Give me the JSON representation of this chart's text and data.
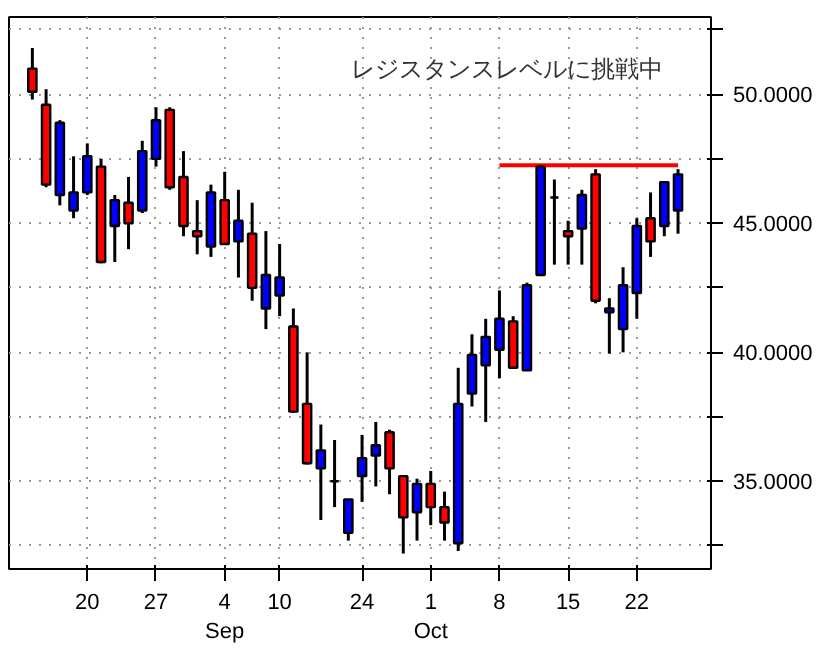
{
  "chart_data": {
    "type": "candlestick",
    "categories": [
      null,
      null,
      null,
      null,
      "20",
      null,
      null,
      null,
      null,
      "27",
      null,
      null,
      null,
      null,
      "4\nSep",
      null,
      null,
      null,
      "10",
      null,
      null,
      null,
      null,
      null,
      "24",
      null,
      null,
      null,
      null,
      "1\nOct",
      null,
      null,
      null,
      null,
      "8",
      null,
      null,
      null,
      null,
      "15",
      null,
      null,
      null,
      null,
      "22",
      null,
      null,
      null
    ],
    "ohlc": [
      [
        51.0,
        51.8,
        49.8,
        50.1
      ],
      [
        49.6,
        50.2,
        46.4,
        46.5
      ],
      [
        46.1,
        49.0,
        45.7,
        48.9
      ],
      [
        45.5,
        47.6,
        45.2,
        46.2
      ],
      [
        46.2,
        48.1,
        46.1,
        47.6
      ],
      [
        47.2,
        47.5,
        43.45,
        43.5
      ],
      [
        44.9,
        46.1,
        43.5,
        45.9
      ],
      [
        45.8,
        46.8,
        44.0,
        45.0
      ],
      [
        45.5,
        48.2,
        45.4,
        47.8
      ],
      [
        47.5,
        49.5,
        47.2,
        49.0
      ],
      [
        49.4,
        49.5,
        46.3,
        46.4
      ],
      [
        46.8,
        47.8,
        44.5,
        44.9
      ],
      [
        44.7,
        45.9,
        43.8,
        44.5
      ],
      [
        44.1,
        46.5,
        43.7,
        46.2
      ],
      [
        45.9,
        47.0,
        44.2,
        44.2
      ],
      [
        44.3,
        46.3,
        42.9,
        45.1
      ],
      [
        44.6,
        45.8,
        42.0,
        42.5
      ],
      [
        41.7,
        44.7,
        40.9,
        43.0
      ],
      [
        42.2,
        44.2,
        41.4,
        42.9
      ],
      [
        41.0,
        41.7,
        37.65,
        37.7
      ],
      [
        38.0,
        40.0,
        35.65,
        35.7
      ],
      [
        35.5,
        37.2,
        33.5,
        36.2
      ],
      [
        35.0,
        36.6,
        34.0,
        35.0
      ],
      [
        33.0,
        34.3,
        32.7,
        34.3
      ],
      [
        35.2,
        36.8,
        34.2,
        35.9
      ],
      [
        36.0,
        37.3,
        34.8,
        36.4
      ],
      [
        36.9,
        37.0,
        34.5,
        35.5
      ],
      [
        35.2,
        35.2,
        32.2,
        33.6
      ],
      [
        33.8,
        35.1,
        32.7,
        34.9
      ],
      [
        34.9,
        35.4,
        33.3,
        34.0
      ],
      [
        34.0,
        34.6,
        32.7,
        33.4
      ],
      [
        32.6,
        39.4,
        32.3,
        38.0
      ],
      [
        38.4,
        40.7,
        37.9,
        39.9
      ],
      [
        39.5,
        41.3,
        37.3,
        40.6
      ],
      [
        40.1,
        42.4,
        39.0,
        41.3
      ],
      [
        41.2,
        41.4,
        39.4,
        39.4
      ],
      [
        39.3,
        42.7,
        39.3,
        42.6
      ],
      [
        43.0,
        47.25,
        43.0,
        47.2
      ],
      [
        46.0,
        46.7,
        43.4,
        46.0
      ],
      [
        44.7,
        45.1,
        43.4,
        44.5
      ],
      [
        44.8,
        46.3,
        43.4,
        46.1
      ],
      [
        46.9,
        47.1,
        41.9,
        42.0
      ],
      [
        41.55,
        42.1,
        39.95,
        41.7
      ],
      [
        40.9,
        43.3,
        40.0,
        42.6
      ],
      [
        42.3,
        45.2,
        41.3,
        44.9
      ],
      [
        45.2,
        46.2,
        43.7,
        44.3
      ],
      [
        44.9,
        46.6,
        44.5,
        46.6
      ],
      [
        45.5,
        47.1,
        44.6,
        46.9
      ]
    ],
    "colors": [
      "#ff0000",
      "#ff0000",
      "#0000ff",
      "#0000ff",
      "#0000ff",
      "#ff0000",
      "#0000ff",
      "#ff0000",
      "#0000ff",
      "#0000ff",
      "#ff0000",
      "#ff0000",
      "#ff0000",
      "#0000ff",
      "#ff0000",
      "#0000ff",
      "#ff0000",
      "#0000ff",
      "#0000ff",
      "#ff0000",
      "#ff0000",
      "#0000ff",
      "#000000",
      "#0000ff",
      "#0000ff",
      "#0000ff",
      "#ff0000",
      "#ff0000",
      "#0000ff",
      "#ff0000",
      "#ff0000",
      "#0000ff",
      "#0000ff",
      "#0000ff",
      "#0000ff",
      "#ff0000",
      "#0000ff",
      "#0000ff",
      "#000000",
      "#ff0000",
      "#0000ff",
      "#ff0000",
      "#0000ff",
      "#0000ff",
      "#0000ff",
      "#ff0000",
      "#0000ff",
      "#0000ff"
    ],
    "series": [
      {
        "type": "line",
        "color": "#ff0000",
        "values": [
          null,
          null,
          null,
          null,
          null,
          null,
          null,
          null,
          null,
          null,
          null,
          null,
          null,
          null,
          null,
          null,
          null,
          null,
          null,
          null,
          null,
          null,
          null,
          null,
          null,
          null,
          null,
          null,
          null,
          null,
          null,
          null,
          null,
          null,
          47.25,
          47.25,
          47.25,
          47.25,
          47.25,
          47.25,
          47.25,
          47.25,
          47.25,
          47.25,
          47.25,
          47.25,
          47.25,
          47.25
        ]
      }
    ],
    "annotations": [
      "レジスタンスレベルに挑戦中"
    ],
    "ylim": [
      31.6,
      53.0
    ],
    "yticks": [
      {
        "value": 32.5,
        "label": null
      },
      {
        "value": 35,
        "label": "35.0000"
      },
      {
        "value": 37.5,
        "label": null
      },
      {
        "value": 40,
        "label": "40.0000"
      },
      {
        "value": 42.5,
        "label": null
      },
      {
        "value": 45,
        "label": "45.0000"
      },
      {
        "value": 47.5,
        "label": null
      },
      {
        "value": 50,
        "label": "50.0000"
      },
      {
        "value": 52.5,
        "label": null
      }
    ],
    "grid": true
  }
}
